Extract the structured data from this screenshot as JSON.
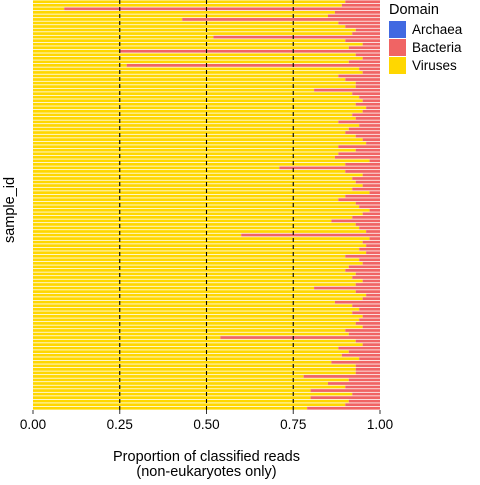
{
  "chart_data": {
    "type": "bar",
    "orientation": "horizontal",
    "stacked": true,
    "xlabel": "Proportion of classified reads\n(non-eukaryotes only)",
    "ylabel": "sample_id",
    "xlim": [
      0,
      1
    ],
    "x_ticks": [
      "0.00",
      "0.25",
      "0.50",
      "0.75",
      "1.00"
    ],
    "reference_lines": [
      0.25,
      0.5,
      0.75
    ],
    "grid": false,
    "legend": {
      "title": "Domain",
      "placement": "right-top",
      "entries": [
        "Archaea",
        "Bacteria",
        "Viruses"
      ]
    },
    "colors": {
      "Archaea": "#4169E1",
      "Bacteria": "#F06464",
      "Viruses": "#FFD700"
    },
    "series": [
      {
        "name": "Archaea",
        "values": [
          0,
          0,
          0,
          0,
          0,
          0,
          0,
          0,
          0,
          0,
          0,
          0,
          0,
          0,
          0,
          0,
          0,
          0,
          0,
          0,
          0,
          0,
          0,
          0,
          0,
          0,
          0,
          0,
          0,
          0,
          0,
          0,
          0,
          0,
          0,
          0,
          0,
          0,
          0,
          0,
          0,
          0,
          0,
          0,
          0,
          0,
          0,
          0,
          0,
          0,
          0,
          0,
          0,
          0,
          0,
          0,
          0,
          0,
          0,
          0,
          0,
          0,
          0,
          0,
          0,
          0,
          0,
          0,
          0,
          0,
          0,
          0,
          0,
          0,
          0,
          0,
          0,
          0,
          0,
          0,
          0,
          0,
          0,
          0,
          0,
          0,
          0,
          0,
          0,
          0,
          0,
          0,
          0,
          0,
          0,
          0,
          0,
          0,
          0,
          0,
          0,
          0,
          0,
          0,
          0,
          0,
          0,
          0,
          0,
          0
        ]
      },
      {
        "name": "Viruses",
        "values": [
          0.9,
          0.89,
          0.09,
          0.87,
          0.85,
          0.43,
          0.88,
          0.9,
          0.93,
          0.92,
          0.52,
          0.9,
          0.95,
          0.91,
          0.25,
          0.93,
          0.95,
          0.91,
          0.27,
          0.94,
          0.95,
          0.88,
          0.9,
          0.93,
          0.93,
          0.81,
          0.92,
          0.94,
          0.95,
          0.93,
          0.96,
          0.95,
          0.92,
          0.93,
          0.88,
          0.94,
          0.91,
          0.9,
          0.93,
          0.95,
          0.96,
          0.88,
          0.93,
          0.88,
          0.87,
          0.97,
          0.9,
          0.71,
          0.9,
          0.95,
          0.92,
          0.93,
          0.95,
          0.92,
          0.97,
          0.9,
          0.88,
          0.93,
          0.94,
          0.97,
          0.95,
          0.92,
          0.86,
          0.93,
          0.94,
          0.96,
          0.6,
          0.97,
          0.95,
          0.96,
          0.94,
          0.96,
          0.9,
          0.94,
          0.95,
          0.91,
          0.9,
          0.93,
          0.92,
          0.95,
          0.93,
          0.81,
          0.93,
          0.96,
          0.95,
          0.87,
          0.92,
          0.94,
          0.92,
          0.95,
          0.94,
          0.93,
          0.95,
          0.9,
          0.91,
          0.54,
          0.93,
          0.95,
          0.88,
          0.91,
          0.89,
          0.94,
          0.86,
          0.93,
          0.93,
          0.93,
          0.78,
          0.91,
          0.85,
          0.9,
          0.8,
          0.92,
          0.8,
          0.91,
          0.9,
          0.79
        ]
      },
      {
        "name": "Bacteria",
        "values": [
          0.1,
          0.11,
          0.91,
          0.13,
          0.15,
          0.57,
          0.12,
          0.1,
          0.07,
          0.08,
          0.48,
          0.1,
          0.05,
          0.09,
          0.75,
          0.07,
          0.05,
          0.09,
          0.73,
          0.06,
          0.05,
          0.12,
          0.1,
          0.07,
          0.07,
          0.19,
          0.08,
          0.06,
          0.05,
          0.07,
          0.04,
          0.05,
          0.08,
          0.07,
          0.12,
          0.06,
          0.09,
          0.1,
          0.07,
          0.05,
          0.04,
          0.12,
          0.07,
          0.12,
          0.13,
          0.03,
          0.1,
          0.29,
          0.1,
          0.05,
          0.08,
          0.07,
          0.05,
          0.08,
          0.03,
          0.1,
          0.12,
          0.07,
          0.06,
          0.03,
          0.05,
          0.08,
          0.14,
          0.07,
          0.06,
          0.04,
          0.4,
          0.03,
          0.05,
          0.04,
          0.06,
          0.04,
          0.1,
          0.06,
          0.05,
          0.09,
          0.1,
          0.07,
          0.08,
          0.05,
          0.07,
          0.19,
          0.07,
          0.04,
          0.05,
          0.13,
          0.08,
          0.06,
          0.08,
          0.05,
          0.06,
          0.07,
          0.05,
          0.1,
          0.09,
          0.46,
          0.07,
          0.05,
          0.12,
          0.09,
          0.11,
          0.06,
          0.14,
          0.07,
          0.07,
          0.07,
          0.22,
          0.09,
          0.15,
          0.1,
          0.2,
          0.08,
          0.2,
          0.09,
          0.1,
          0.21
        ]
      }
    ]
  }
}
